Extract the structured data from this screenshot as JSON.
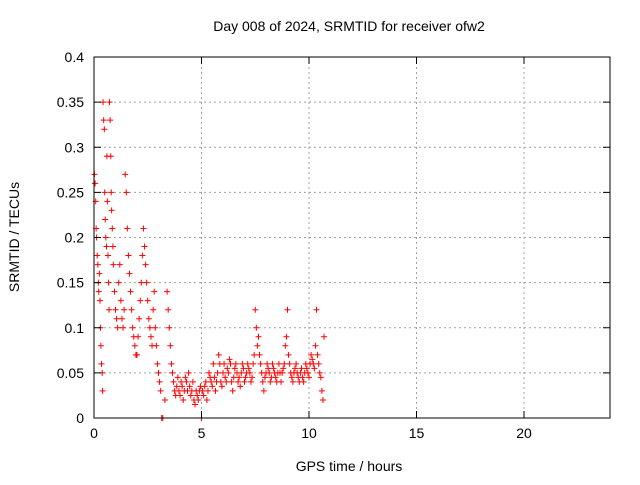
{
  "chart_data": {
    "type": "scatter",
    "title": "Day 008 of 2024, SRMTID for receiver ofw2",
    "xlabel": "GPS time / hours",
    "ylabel": "SRMTID / TECUs",
    "xlim": [
      0,
      24
    ],
    "ylim": [
      0,
      0.4
    ],
    "xticks": [
      0,
      5,
      10,
      15,
      20
    ],
    "yticks": [
      0,
      0.05,
      0.1,
      0.15,
      0.2,
      0.25,
      0.3,
      0.35,
      0.4
    ],
    "xtick_labels": [
      "0",
      "5",
      "10",
      "15",
      "20"
    ],
    "ytick_labels": [
      "0",
      "0.05",
      "0.1",
      "0.15",
      "0.2",
      "0.25",
      "0.3",
      "0.35",
      "0.4"
    ],
    "grid": true,
    "marker": "+",
    "marker_color": "#ff0000",
    "series": [
      {
        "points": [
          [
            0.02,
            0.27
          ],
          [
            0.05,
            0.26
          ],
          [
            0.08,
            0.24
          ],
          [
            0.1,
            0.21
          ],
          [
            0.12,
            0.2
          ],
          [
            0.15,
            0.18
          ],
          [
            0.18,
            0.17
          ],
          [
            0.2,
            0.15
          ],
          [
            0.22,
            0.14
          ],
          [
            0.25,
            0.16
          ],
          [
            0.28,
            0.13
          ],
          [
            0.3,
            0.1
          ],
          [
            0.32,
            0.08
          ],
          [
            0.35,
            0.06
          ],
          [
            0.38,
            0.05
          ],
          [
            0.4,
            0.03
          ],
          [
            0.42,
            0.35
          ],
          [
            0.45,
            0.33
          ],
          [
            0.48,
            0.32
          ],
          [
            0.5,
            0.25
          ],
          [
            0.52,
            0.22
          ],
          [
            0.55,
            0.2
          ],
          [
            0.58,
            0.19
          ],
          [
            0.6,
            0.29
          ],
          [
            0.62,
            0.24
          ],
          [
            0.65,
            0.18
          ],
          [
            0.68,
            0.15
          ],
          [
            0.7,
            0.12
          ],
          [
            0.72,
            0.35
          ],
          [
            0.75,
            0.33
          ],
          [
            0.78,
            0.29
          ],
          [
            0.8,
            0.25
          ],
          [
            0.82,
            0.23
          ],
          [
            0.85,
            0.21
          ],
          [
            0.88,
            0.19
          ],
          [
            0.9,
            0.17
          ],
          [
            0.95,
            0.14
          ],
          [
            1.0,
            0.12
          ],
          [
            1.05,
            0.11
          ],
          [
            1.1,
            0.1
          ],
          [
            1.15,
            0.15
          ],
          [
            1.2,
            0.17
          ],
          [
            1.25,
            0.13
          ],
          [
            1.3,
            0.11
          ],
          [
            1.35,
            0.1
          ],
          [
            1.4,
            0.12
          ],
          [
            1.45,
            0.27
          ],
          [
            1.5,
            0.25
          ],
          [
            1.55,
            0.21
          ],
          [
            1.6,
            0.18
          ],
          [
            1.65,
            0.16
          ],
          [
            1.7,
            0.14
          ],
          [
            1.75,
            0.12
          ],
          [
            1.8,
            0.1
          ],
          [
            1.85,
            0.09
          ],
          [
            1.9,
            0.08
          ],
          [
            1.95,
            0.07
          ],
          [
            2.0,
            0.07
          ],
          [
            2.05,
            0.09
          ],
          [
            2.1,
            0.11
          ],
          [
            2.15,
            0.13
          ],
          [
            2.2,
            0.15
          ],
          [
            2.25,
            0.18
          ],
          [
            2.3,
            0.21
          ],
          [
            2.35,
            0.19
          ],
          [
            2.4,
            0.17
          ],
          [
            2.45,
            0.15
          ],
          [
            2.5,
            0.13
          ],
          [
            2.55,
            0.11
          ],
          [
            2.6,
            0.1
          ],
          [
            2.65,
            0.09
          ],
          [
            2.7,
            0.08
          ],
          [
            2.75,
            0.12
          ],
          [
            2.8,
            0.14
          ],
          [
            2.85,
            0.1
          ],
          [
            2.9,
            0.08
          ],
          [
            2.95,
            0.06
          ],
          [
            3.0,
            0.05
          ],
          [
            3.05,
            0.04
          ],
          [
            3.1,
            0.03
          ],
          [
            3.15,
            0.0
          ],
          [
            3.2,
            0.0
          ],
          [
            3.3,
            0.02
          ],
          [
            3.4,
            0.14
          ],
          [
            3.45,
            0.12
          ],
          [
            3.5,
            0.1
          ],
          [
            3.55,
            0.08
          ],
          [
            3.6,
            0.06
          ],
          [
            3.65,
            0.05
          ],
          [
            3.7,
            0.04
          ],
          [
            3.75,
            0.03
          ],
          [
            3.8,
            0.025
          ],
          [
            3.85,
            0.035
          ],
          [
            3.9,
            0.045
          ],
          [
            3.95,
            0.03
          ],
          [
            4.0,
            0.025
          ],
          [
            4.05,
            0.04
          ],
          [
            4.1,
            0.035
          ],
          [
            4.15,
            0.02
          ],
          [
            4.2,
            0.03
          ],
          [
            4.25,
            0.045
          ],
          [
            4.3,
            0.04
          ],
          [
            4.35,
            0.03
          ],
          [
            4.4,
            0.05
          ],
          [
            4.45,
            0.035
          ],
          [
            4.5,
            0.025
          ],
          [
            4.55,
            0.03
          ],
          [
            4.6,
            0.04
          ],
          [
            4.65,
            0.02
          ],
          [
            4.7,
            0.015
          ],
          [
            4.75,
            0.03
          ],
          [
            4.8,
            0.025
          ],
          [
            4.85,
            0.02
          ],
          [
            4.9,
            0.03
          ],
          [
            4.95,
            0.035
          ],
          [
            5.0,
            0.0
          ],
          [
            5.05,
            0.03
          ],
          [
            5.1,
            0.025
          ],
          [
            5.15,
            0.035
          ],
          [
            5.2,
            0.04
          ],
          [
            5.25,
            0.02
          ],
          [
            5.3,
            0.03
          ],
          [
            5.35,
            0.05
          ],
          [
            5.4,
            0.045
          ],
          [
            5.45,
            0.04
          ],
          [
            5.5,
            0.035
          ],
          [
            5.55,
            0.06
          ],
          [
            5.6,
            0.045
          ],
          [
            5.65,
            0.03
          ],
          [
            5.7,
            0.04
          ],
          [
            5.75,
            0.05
          ],
          [
            5.8,
            0.07
          ],
          [
            5.85,
            0.06
          ],
          [
            5.9,
            0.04
          ],
          [
            5.95,
            0.035
          ],
          [
            6.0,
            0.05
          ],
          [
            6.05,
            0.06
          ],
          [
            6.1,
            0.045
          ],
          [
            6.15,
            0.04
          ],
          [
            6.2,
            0.055
          ],
          [
            6.25,
            0.05
          ],
          [
            6.3,
            0.065
          ],
          [
            6.35,
            0.06
          ],
          [
            6.4,
            0.04
          ],
          [
            6.45,
            0.03
          ],
          [
            6.5,
            0.045
          ],
          [
            6.55,
            0.055
          ],
          [
            6.6,
            0.06
          ],
          [
            6.65,
            0.05
          ],
          [
            6.7,
            0.04
          ],
          [
            6.75,
            0.045
          ],
          [
            6.8,
            0.035
          ],
          [
            6.85,
            0.05
          ],
          [
            6.9,
            0.06
          ],
          [
            6.95,
            0.055
          ],
          [
            7.0,
            0.04
          ],
          [
            7.05,
            0.045
          ],
          [
            7.1,
            0.05
          ],
          [
            7.15,
            0.06
          ],
          [
            7.2,
            0.055
          ],
          [
            7.25,
            0.05
          ],
          [
            7.3,
            0.04
          ],
          [
            7.35,
            0.045
          ],
          [
            7.4,
            0.06
          ],
          [
            7.45,
            0.07
          ],
          [
            7.5,
            0.12
          ],
          [
            7.55,
            0.1
          ],
          [
            7.6,
            0.08
          ],
          [
            7.65,
            0.09
          ],
          [
            7.7,
            0.07
          ],
          [
            7.75,
            0.06
          ],
          [
            7.8,
            0.05
          ],
          [
            7.85,
            0.04
          ],
          [
            7.9,
            0.03
          ],
          [
            7.95,
            0.045
          ],
          [
            8.0,
            0.05
          ],
          [
            8.05,
            0.06
          ],
          [
            8.1,
            0.055
          ],
          [
            8.15,
            0.05
          ],
          [
            8.2,
            0.04
          ],
          [
            8.25,
            0.045
          ],
          [
            8.3,
            0.06
          ],
          [
            8.35,
            0.055
          ],
          [
            8.4,
            0.05
          ],
          [
            8.45,
            0.045
          ],
          [
            8.5,
            0.04
          ],
          [
            8.55,
            0.05
          ],
          [
            8.6,
            0.06
          ],
          [
            8.65,
            0.05
          ],
          [
            8.7,
            0.04
          ],
          [
            8.75,
            0.05
          ],
          [
            8.8,
            0.055
          ],
          [
            8.85,
            0.06
          ],
          [
            8.9,
            0.08
          ],
          [
            8.95,
            0.09
          ],
          [
            9.0,
            0.12
          ],
          [
            9.05,
            0.07
          ],
          [
            9.1,
            0.06
          ],
          [
            9.15,
            0.05
          ],
          [
            9.2,
            0.045
          ],
          [
            9.25,
            0.04
          ],
          [
            9.3,
            0.05
          ],
          [
            9.35,
            0.055
          ],
          [
            9.4,
            0.06
          ],
          [
            9.45,
            0.05
          ],
          [
            9.5,
            0.045
          ],
          [
            9.55,
            0.04
          ],
          [
            9.6,
            0.05
          ],
          [
            9.65,
            0.055
          ],
          [
            9.7,
            0.045
          ],
          [
            9.75,
            0.04
          ],
          [
            9.8,
            0.05
          ],
          [
            9.85,
            0.06
          ],
          [
            9.9,
            0.055
          ],
          [
            9.95,
            0.05
          ],
          [
            10.0,
            0.045
          ],
          [
            10.05,
            0.06
          ],
          [
            10.1,
            0.07
          ],
          [
            10.15,
            0.065
          ],
          [
            10.2,
            0.06
          ],
          [
            10.25,
            0.055
          ],
          [
            10.3,
            0.08
          ],
          [
            10.35,
            0.12
          ],
          [
            10.4,
            0.07
          ],
          [
            10.45,
            0.06
          ],
          [
            10.5,
            0.05
          ],
          [
            10.55,
            0.045
          ],
          [
            10.6,
            0.03
          ],
          [
            10.65,
            0.02
          ],
          [
            10.7,
            0.09
          ]
        ]
      }
    ]
  }
}
